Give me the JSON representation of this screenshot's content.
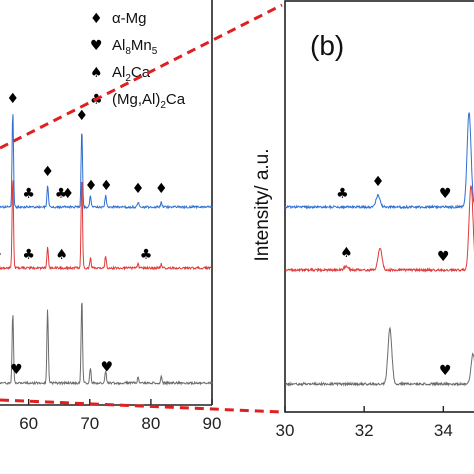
{
  "chart_data": [
    {
      "panel": "a",
      "type": "line",
      "x_ticks": [
        60,
        70,
        80,
        90
      ],
      "xlim": [
        54,
        90
      ],
      "y_label": "",
      "series": [
        {
          "color": "#2e6fd0",
          "peaks": [
            [
              57.4,
              0.95
            ],
            [
              63.1,
              0.22
            ],
            [
              68.7,
              0.78
            ],
            [
              70.1,
              0.12
            ],
            [
              72.6,
              0.12
            ],
            [
              77.9,
              0.05
            ],
            [
              81.7,
              0.05
            ]
          ],
          "markers": [
            [
              "diamond",
              57.4
            ],
            [
              "diamond",
              63.1
            ],
            [
              "club",
              65.3
            ],
            [
              "diamond",
              66.4
            ],
            [
              "diamond",
              68.7
            ],
            [
              "club",
              60.0
            ],
            [
              "diamond",
              70.2
            ],
            [
              "diamond",
              72.7
            ],
            [
              "diamond",
              77.9
            ],
            [
              "diamond",
              81.7
            ]
          ]
        },
        {
          "color": "#e03a3a",
          "peaks": [
            [
              57.4,
              0.9
            ],
            [
              63.1,
              0.22
            ],
            [
              68.7,
              0.92
            ],
            [
              70.1,
              0.1
            ],
            [
              72.6,
              0.12
            ],
            [
              77.9,
              0.04
            ],
            [
              81.7,
              0.04
            ]
          ],
          "markers": [
            [
              "diamond",
              54.8
            ],
            [
              "club",
              60.0
            ],
            [
              "spade",
              65.4
            ],
            [
              "club",
              79.2
            ]
          ]
        },
        {
          "color": "#6b6b6b",
          "peaks": [
            [
              57.4,
              0.7
            ],
            [
              63.1,
              0.75
            ],
            [
              68.7,
              0.85
            ],
            [
              70.1,
              0.15
            ],
            [
              72.6,
              0.12
            ],
            [
              77.9,
              0.06
            ],
            [
              81.7,
              0.06
            ]
          ],
          "markers": [
            [
              "heart",
              58.0
            ],
            [
              "heart",
              72.8
            ]
          ]
        }
      ]
    },
    {
      "panel": "b",
      "type": "line",
      "x_ticks": [
        30,
        32,
        34
      ],
      "xlim": [
        30,
        34.8
      ],
      "y_label": "Intensity/ a.u.",
      "series": [
        {
          "color": "#2e6fd0",
          "peaks": [
            [
              32.35,
              0.12
            ],
            [
              34.65,
              0.95
            ]
          ],
          "markers": [
            [
              "club",
              31.45
            ],
            [
              "diamond",
              32.35
            ],
            [
              "heart",
              34.05
            ]
          ]
        },
        {
          "color": "#e03a3a",
          "peaks": [
            [
              31.55,
              0.04
            ],
            [
              32.4,
              0.22
            ],
            [
              34.7,
              0.85
            ]
          ],
          "markers": [
            [
              "spade",
              31.55
            ],
            [
              "heart",
              34.0
            ]
          ]
        },
        {
          "color": "#6b6b6b",
          "peaks": [
            [
              32.65,
              0.55
            ],
            [
              34.75,
              0.3
            ]
          ],
          "markers": [
            [
              "heart",
              34.05
            ]
          ]
        }
      ]
    }
  ],
  "legend": [
    {
      "symbol": "♦",
      "text": "α-Mg",
      "base": "α-Mg",
      "sub": ""
    },
    {
      "symbol": "♥",
      "text": "Al8Mn5",
      "base": "Al",
      "sub": "8",
      "base2": "Mn",
      "sub2": "5"
    },
    {
      "symbol": "♠",
      "text": "Al2Ca",
      "base": "Al",
      "sub": "2",
      "base2": "Ca",
      "sub2": ""
    },
    {
      "symbol": "♣",
      "text": "(Mg,Al)2Ca",
      "base": "(Mg,Al)",
      "sub": "2",
      "base2": "Ca",
      "sub2": ""
    }
  ],
  "panel_b_label": "(b)",
  "y_axis_title": "Intensity/ a.u.",
  "x_ticks_a": [
    "60",
    "70",
    "80",
    "90"
  ],
  "x_ticks_b": [
    "30",
    "32",
    "34"
  ],
  "connector_color": "#e02020"
}
